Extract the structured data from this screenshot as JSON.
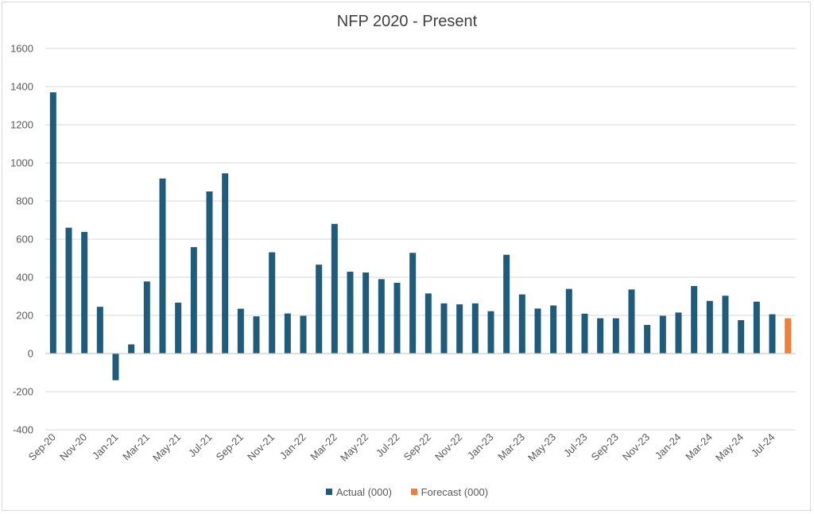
{
  "chart_data": {
    "type": "bar",
    "title": "NFP 2020 - Present",
    "xlabel": "",
    "ylabel": "",
    "ylim": [
      -400,
      1600
    ],
    "yticks": [
      -400,
      -200,
      0,
      200,
      400,
      600,
      800,
      1000,
      1200,
      1400,
      1600
    ],
    "grid": true,
    "legend_position": "bottom",
    "categories": [
      "Sep-20",
      "Oct-20",
      "Nov-20",
      "Dec-20",
      "Jan-21",
      "Feb-21",
      "Mar-21",
      "Apr-21",
      "May-21",
      "Jun-21",
      "Jul-21",
      "Aug-21",
      "Sep-21",
      "Oct-21",
      "Nov-21",
      "Dec-21",
      "Jan-22",
      "Feb-22",
      "Mar-22",
      "Apr-22",
      "May-22",
      "Jun-22",
      "Jul-22",
      "Aug-22",
      "Sep-22",
      "Oct-22",
      "Nov-22",
      "Dec-22",
      "Jan-23",
      "Feb-23",
      "Mar-23",
      "Apr-23",
      "May-23",
      "Jun-23",
      "Jul-23",
      "Aug-23",
      "Sep-23",
      "Oct-23",
      "Nov-23",
      "Dec-23",
      "Jan-24",
      "Feb-24",
      "Mar-24",
      "Apr-24",
      "May-24",
      "Jun-24",
      "Jul-24",
      "Aug-24"
    ],
    "tick_labels": [
      "Sep-20",
      "Nov-20",
      "Jan-21",
      "Mar-21",
      "May-21",
      "Jul-21",
      "Sep-21",
      "Nov-21",
      "Jan-22",
      "Mar-22",
      "May-22",
      "Jul-22",
      "Sep-22",
      "Nov-22",
      "Jan-23",
      "Mar-23",
      "May-23",
      "Jul-23",
      "Sep-23",
      "Nov-23",
      "Jan-24",
      "Mar-24",
      "May-24",
      "Jul-24"
    ],
    "series": [
      {
        "name": "Actual (000)",
        "color": "#1f5b7a",
        "values": [
          1370,
          660,
          638,
          245,
          -140,
          48,
          378,
          918,
          267,
          558,
          850,
          945,
          235,
          195,
          531,
          210,
          198,
          466,
          680,
          429,
          425,
          390,
          371,
          528,
          315,
          263,
          258,
          263,
          222,
          518,
          310,
          236,
          252,
          339,
          209,
          185,
          185,
          336,
          150,
          198,
          215,
          354,
          276,
          303,
          175,
          272,
          206,
          null
        ]
      },
      {
        "name": "Forecast (000)",
        "color": "#f07f3c",
        "values": [
          null,
          null,
          null,
          null,
          null,
          null,
          null,
          null,
          null,
          null,
          null,
          null,
          null,
          null,
          null,
          null,
          null,
          null,
          null,
          null,
          null,
          null,
          null,
          null,
          null,
          null,
          null,
          null,
          null,
          null,
          null,
          null,
          null,
          null,
          null,
          null,
          null,
          null,
          null,
          null,
          null,
          null,
          null,
          null,
          null,
          null,
          null,
          185
        ]
      }
    ]
  }
}
